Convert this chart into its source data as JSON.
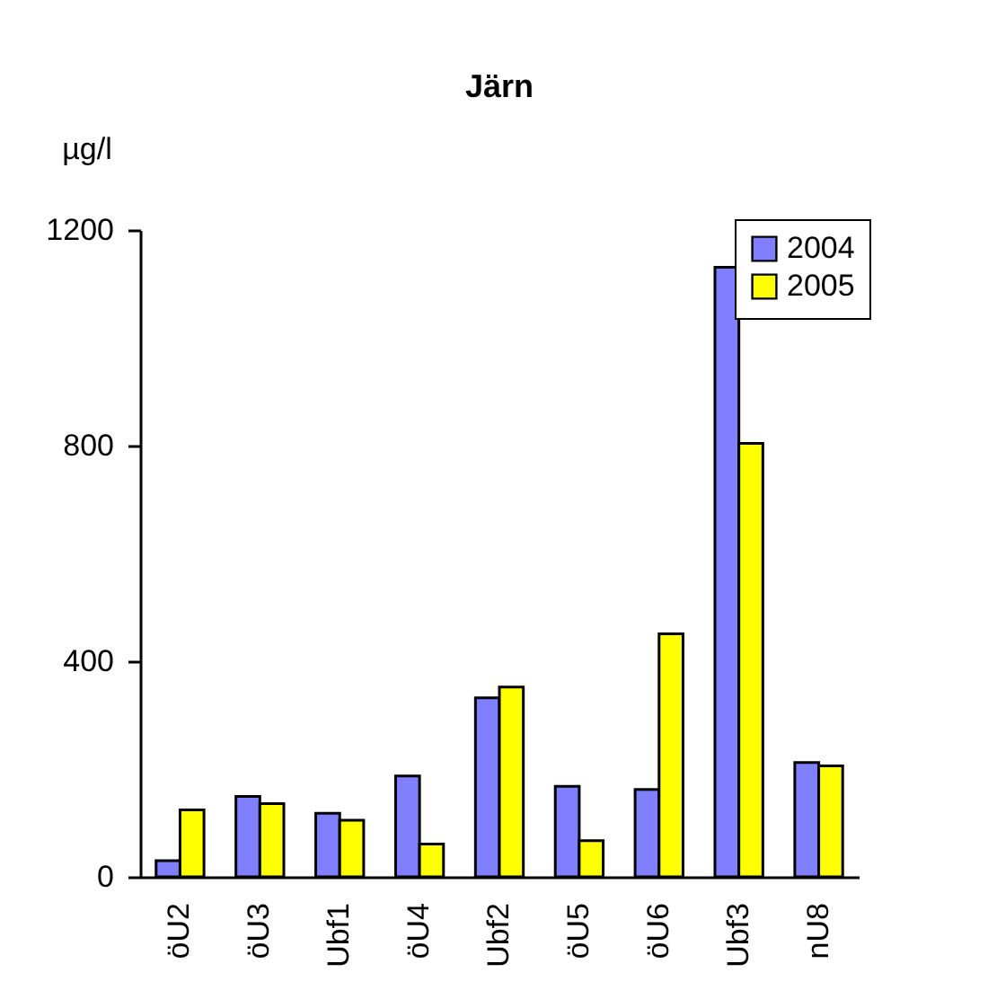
{
  "chart_data": {
    "type": "bar",
    "title": "Järn",
    "ylabel": "µg/l",
    "categories": [
      "öU2",
      "öU3",
      "Ubf1",
      "öU4",
      "Ubf2",
      "öU5",
      "öU6",
      "Ubf3",
      "nU8"
    ],
    "series": [
      {
        "name": "2004",
        "color": "#8080ff",
        "values": [
          30,
          149,
          118,
          187,
          332,
          168,
          162,
          1131,
          212
        ]
      },
      {
        "name": "2005",
        "color": "#ffff00",
        "values": [
          124,
          136,
          105,
          61,
          352,
          67,
          451,
          804,
          206
        ]
      }
    ],
    "ylim": [
      0,
      1200
    ],
    "yticks": [
      0,
      400,
      800,
      1200
    ],
    "grid": false,
    "legend": "top right"
  }
}
